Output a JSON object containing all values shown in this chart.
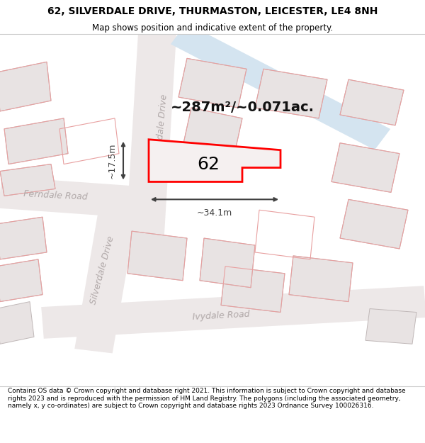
{
  "title_line1": "62, SILVERDALE DRIVE, THURMASTON, LEICESTER, LE4 8NH",
  "title_line2": "Map shows position and indicative extent of the property.",
  "footer_text": "Contains OS data © Crown copyright and database right 2021. This information is subject to Crown copyright and database rights 2023 and is reproduced with the permission of HM Land Registry. The polygons (including the associated geometry, namely x, y co-ordinates) are subject to Crown copyright and database rights 2023 Ordnance Survey 100026316.",
  "area_text": "~287m²/~0.071ac.",
  "width_label": "~34.1m",
  "height_label": "~17.5m",
  "number_label": "62",
  "map_bg": "#f9f6f6",
  "building_fill": "#e8e3e3",
  "building_edge": "#c8bebe",
  "highlight_fill": "#f5f0f0",
  "highlight_edge": "#ff0000",
  "road_fill": "#ede8e8",
  "blue_road_fill": "#d4e4f0",
  "dim_color": "#404040",
  "road_label_color": "#b0a8a8",
  "title_fontsize": 10,
  "subtitle_fontsize": 8.5,
  "footer_fontsize": 6.5,
  "area_fontsize": 14,
  "num_fontsize": 18,
  "dim_fontsize": 9,
  "road_fontsize": 9
}
